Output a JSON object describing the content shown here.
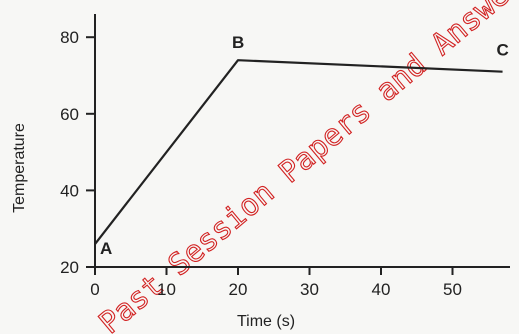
{
  "chart_data": {
    "type": "line",
    "title": "",
    "xlabel": "Time (s)",
    "ylabel": "Temperature",
    "xlim": [
      0,
      57
    ],
    "ylim": [
      20,
      87
    ],
    "x_ticks": [
      0,
      10,
      20,
      30,
      40,
      50
    ],
    "y_ticks": [
      20,
      40,
      60,
      80
    ],
    "grid": false,
    "series": [
      {
        "x": [
          0,
          20,
          57
        ],
        "y": [
          26,
          74,
          71
        ]
      }
    ],
    "points": [
      {
        "label": "A",
        "x": 0,
        "y": 26
      },
      {
        "label": "B",
        "x": 20,
        "y": 74
      },
      {
        "label": "C",
        "x": 57,
        "y": 71
      }
    ],
    "line_color": "#222222",
    "watermark": {
      "text": "Past Session Papers and Answers.com",
      "color": "#d22222"
    }
  }
}
